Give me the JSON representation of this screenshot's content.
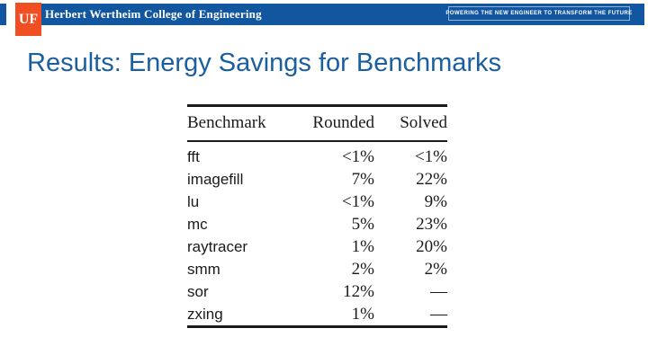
{
  "header": {
    "logo": "UF",
    "college": "Herbert Wertheim College of Engineering",
    "tagline": "POWERING THE NEW ENGINEER TO TRANSFORM THE FUTURE"
  },
  "title": "Results: Energy Savings for Benchmarks",
  "table": {
    "headers": [
      "Benchmark",
      "Rounded",
      "Solved"
    ],
    "rows": [
      [
        "fft",
        "<1%",
        "<1%"
      ],
      [
        "imagefill",
        "7%",
        "22%"
      ],
      [
        "lu",
        "<1%",
        "9%"
      ],
      [
        "mc",
        "5%",
        "23%"
      ],
      [
        "raytracer",
        "1%",
        "20%"
      ],
      [
        "smm",
        "2%",
        "2%"
      ],
      [
        "sor",
        "12%",
        "—"
      ],
      [
        "zxing",
        "1%",
        "—"
      ]
    ]
  },
  "colors": {
    "bar_blue": "#1256A0",
    "logo_orange": "#F04E23",
    "title_blue": "#1B5F9E",
    "rule_color": "#1a1a1a"
  }
}
